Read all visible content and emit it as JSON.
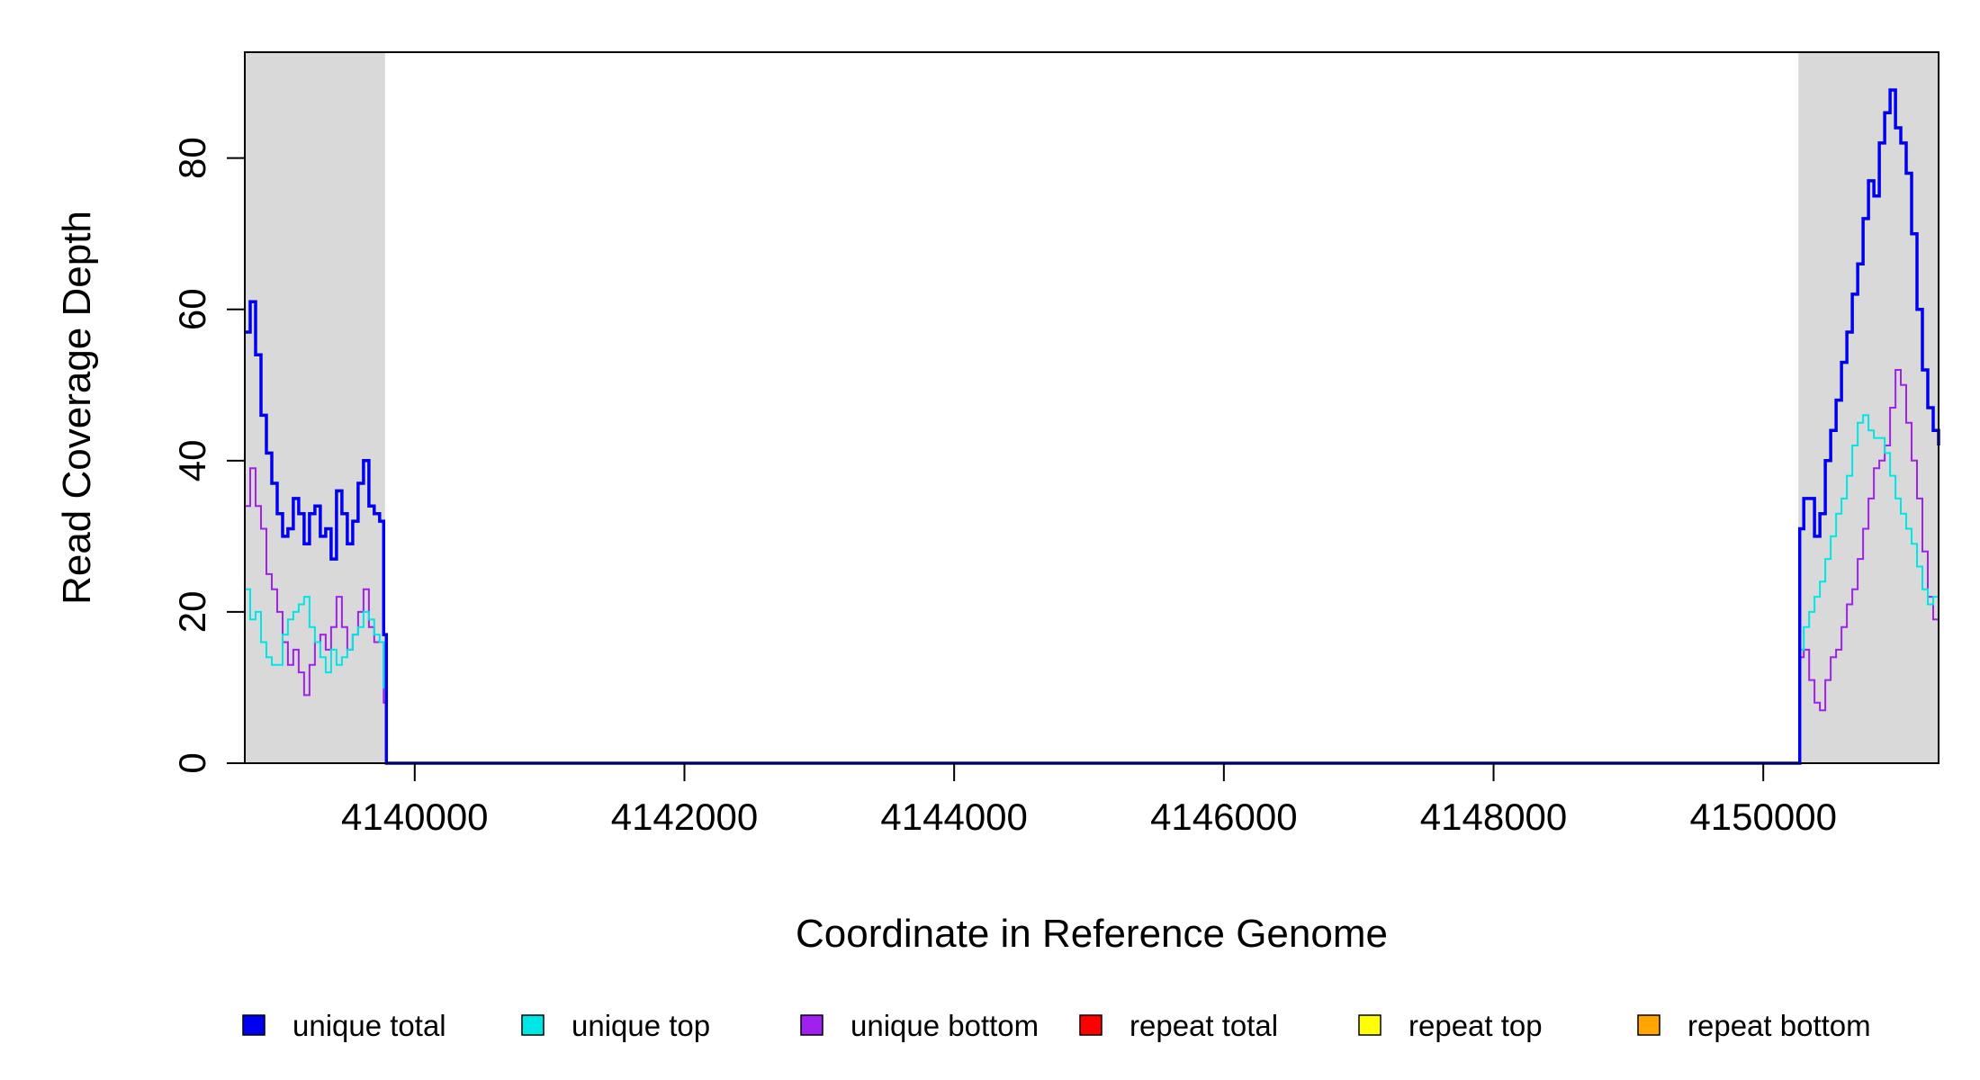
{
  "chart_data": {
    "type": "line",
    "title": "",
    "xlabel": "Coordinate in Reference Genome",
    "ylabel": "Read Coverage Depth",
    "xlim": [
      4138740,
      4151300
    ],
    "ylim": [
      0,
      94
    ],
    "x_ticks": [
      4140000,
      4142000,
      4144000,
      4146000,
      4148000,
      4150000
    ],
    "y_ticks": [
      0,
      20,
      40,
      60,
      80
    ],
    "grid": false,
    "legend_position": "bottom",
    "shaded_regions": [
      {
        "x0": 4138740,
        "x1": 4139780,
        "color": "#d9d9d9"
      },
      {
        "x0": 4150260,
        "x1": 4151300,
        "color": "#d9d9d9"
      }
    ],
    "series": [
      {
        "name": "unique total",
        "color": "#0000ee",
        "width": 3.5,
        "x": [
          4138740,
          4138780,
          4138820,
          4138860,
          4138900,
          4138940,
          4138980,
          4139020,
          4139060,
          4139100,
          4139140,
          4139180,
          4139220,
          4139260,
          4139300,
          4139340,
          4139380,
          4139420,
          4139460,
          4139500,
          4139540,
          4139580,
          4139620,
          4139660,
          4139700,
          4139740,
          4139770,
          4139790,
          4150240,
          4150270,
          4150300,
          4150340,
          4150380,
          4150420,
          4150460,
          4150500,
          4150540,
          4150580,
          4150620,
          4150660,
          4150700,
          4150740,
          4150780,
          4150820,
          4150860,
          4150900,
          4150940,
          4150980,
          4151020,
          4151060,
          4151100,
          4151140,
          4151180,
          4151220,
          4151260,
          4151300
        ],
        "y": [
          57,
          61,
          54,
          46,
          41,
          37,
          33,
          30,
          31,
          35,
          33,
          29,
          33,
          34,
          30,
          31,
          27,
          36,
          33,
          29,
          32,
          37,
          40,
          34,
          33,
          32,
          17,
          0,
          0,
          31,
          35,
          35,
          30,
          33,
          40,
          44,
          48,
          53,
          57,
          62,
          66,
          72,
          77,
          75,
          82,
          86,
          89,
          84,
          82,
          78,
          70,
          60,
          52,
          47,
          44,
          42
        ]
      },
      {
        "name": "unique top",
        "color": "#00e5e5",
        "width": 2,
        "x": [
          4138740,
          4138780,
          4138820,
          4138860,
          4138900,
          4138940,
          4138980,
          4139020,
          4139060,
          4139100,
          4139140,
          4139180,
          4139220,
          4139260,
          4139300,
          4139340,
          4139380,
          4139420,
          4139460,
          4139500,
          4139540,
          4139580,
          4139620,
          4139660,
          4139700,
          4139740,
          4139770,
          4139790,
          4150240,
          4150270,
          4150300,
          4150340,
          4150380,
          4150420,
          4150460,
          4150500,
          4150540,
          4150580,
          4150620,
          4150660,
          4150700,
          4150740,
          4150780,
          4150820,
          4150860,
          4150900,
          4150940,
          4150980,
          4151020,
          4151060,
          4151100,
          4151140,
          4151180,
          4151220,
          4151260,
          4151300
        ],
        "y": [
          23,
          19,
          20,
          16,
          14,
          13,
          13,
          17,
          19,
          20,
          21,
          22,
          18,
          16,
          14,
          12,
          15,
          13,
          14,
          15,
          17,
          18,
          20,
          19,
          17,
          16,
          10,
          0,
          0,
          15,
          18,
          20,
          22,
          24,
          27,
          30,
          33,
          35,
          38,
          42,
          45,
          46,
          44,
          43,
          43,
          41,
          38,
          35,
          33,
          31,
          29,
          26,
          23,
          21,
          22,
          24
        ]
      },
      {
        "name": "unique bottom",
        "color": "#a020f0",
        "width": 2,
        "x": [
          4138740,
          4138780,
          4138820,
          4138860,
          4138900,
          4138940,
          4138980,
          4139020,
          4139060,
          4139100,
          4139140,
          4139180,
          4139220,
          4139260,
          4139300,
          4139340,
          4139380,
          4139420,
          4139460,
          4139500,
          4139540,
          4139580,
          4139620,
          4139660,
          4139700,
          4139740,
          4139770,
          4139790,
          4150240,
          4150270,
          4150300,
          4150340,
          4150380,
          4150420,
          4150460,
          4150500,
          4150540,
          4150580,
          4150620,
          4150660,
          4150700,
          4150740,
          4150780,
          4150820,
          4150860,
          4150900,
          4150940,
          4150980,
          4151020,
          4151060,
          4151100,
          4151140,
          4151180,
          4151220,
          4151260,
          4151300
        ],
        "y": [
          34,
          39,
          34,
          31,
          25,
          23,
          20,
          16,
          13,
          15,
          12,
          9,
          13,
          16,
          17,
          15,
          18,
          22,
          18,
          15,
          17,
          20,
          23,
          18,
          16,
          16,
          8,
          0,
          0,
          14,
          15,
          11,
          8,
          7,
          11,
          14,
          15,
          18,
          21,
          23,
          27,
          31,
          35,
          39,
          40,
          42,
          47,
          52,
          50,
          45,
          40,
          35,
          28,
          22,
          19,
          18
        ]
      },
      {
        "name": "repeat total",
        "color": "#ff0000",
        "width": 2,
        "x": [
          4138740,
          4151300
        ],
        "y": [
          0,
          0
        ]
      },
      {
        "name": "repeat top",
        "color": "#ffff00",
        "width": 2,
        "x": [
          4138740,
          4151300
        ],
        "y": [
          0,
          0
        ]
      },
      {
        "name": "repeat bottom",
        "color": "#ffa500",
        "width": 2,
        "x": [
          4138740,
          4151300
        ],
        "y": [
          0,
          0
        ]
      }
    ]
  }
}
